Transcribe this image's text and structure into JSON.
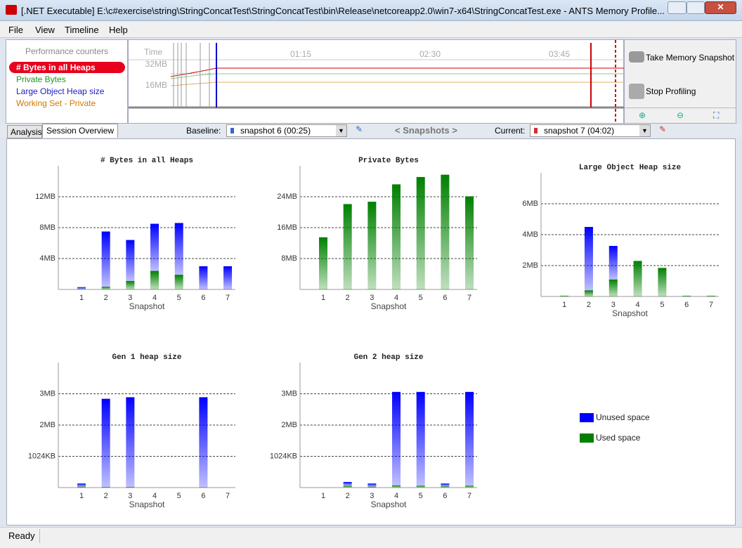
{
  "window": {
    "title": "[.NET Executable] E:\\c#exercise\\string\\StringConcatTest\\StringConcatTest\\bin\\Release\\netcoreapp2.0\\win7-x64\\StringConcatTest.exe - ANTS Memory Profile..."
  },
  "menu": [
    "File",
    "View",
    "Timeline",
    "Help"
  ],
  "counters": {
    "header": "Performance counters",
    "items": [
      "# Bytes in all Heaps",
      "Private Bytes",
      "Large Object Heap size",
      "Working Set - Private"
    ]
  },
  "timeline": {
    "axis_label": "Time",
    "times": [
      "01:15",
      "02:30",
      "03:45"
    ],
    "levels": [
      "32MB",
      "16MB"
    ]
  },
  "actions": {
    "snapshot": "Take Memory Snapshot",
    "stop": "Stop Profiling"
  },
  "tabs": [
    "Analysis",
    "Session Overview"
  ],
  "toolbar": {
    "baseline_label": "Baseline:",
    "baseline": "snapshot 6 (00:25)",
    "nav": "< Snapshots >",
    "current_label": "Current:",
    "current": "snapshot 7 (04:02)"
  },
  "chart_data": [
    {
      "type": "bar",
      "title": "# Bytes in all Heaps",
      "x_label": "Snapshot",
      "categories": [
        "1",
        "2",
        "3",
        "4",
        "5",
        "6",
        "7"
      ],
      "series": [
        {
          "name": "Used space",
          "color": "#008000",
          "values": [
            0.05,
            0.35,
            1.1,
            2.4,
            1.9,
            0,
            0
          ]
        },
        {
          "name": "Unused space",
          "color": "#0000ff",
          "values": [
            0.25,
            7.15,
            5.3,
            6.1,
            6.7,
            3.0,
            3.0
          ]
        }
      ],
      "ylim": [
        0,
        16
      ],
      "yticks": [
        {
          "value": 4,
          "label": "4MB"
        },
        {
          "value": 8,
          "label": "8MB"
        },
        {
          "value": 12,
          "label": "12MB"
        }
      ],
      "grid": true
    },
    {
      "type": "bar",
      "title": "Private Bytes",
      "x_label": "Snapshot",
      "categories": [
        "1",
        "2",
        "3",
        "4",
        "5",
        "6",
        "7"
      ],
      "series": [
        {
          "name": "Used space",
          "color": "#008000",
          "values": [
            13.5,
            22.1,
            22.7,
            27.2,
            29.1,
            29.7,
            24.1
          ]
        }
      ],
      "ylim": [
        0,
        32
      ],
      "yticks": [
        {
          "value": 8,
          "label": "8MB"
        },
        {
          "value": 16,
          "label": "16MB"
        },
        {
          "value": 24,
          "label": "24MB"
        }
      ],
      "grid": true
    },
    {
      "type": "bar",
      "title": "Large Object Heap size",
      "x_label": "Snapshot",
      "categories": [
        "1",
        "2",
        "3",
        "4",
        "5",
        "6",
        "7"
      ],
      "series": [
        {
          "name": "Used space",
          "color": "#008000",
          "values": [
            0.05,
            0.4,
            1.1,
            2.3,
            1.85,
            0.05,
            0.05
          ]
        },
        {
          "name": "Unused space",
          "color": "#0000ff",
          "values": [
            0,
            4.1,
            2.17,
            0,
            0,
            0,
            0
          ]
        }
      ],
      "ylim": [
        0,
        8
      ],
      "yticks": [
        {
          "value": 2,
          "label": "2MB"
        },
        {
          "value": 4,
          "label": "4MB"
        },
        {
          "value": 6,
          "label": "6MB"
        }
      ],
      "grid": true
    },
    {
      "type": "bar",
      "title": "Gen 1 heap size",
      "x_label": "Snapshot",
      "categories": [
        "1",
        "2",
        "3",
        "4",
        "5",
        "6",
        "7"
      ],
      "series": [
        {
          "name": "Used space",
          "color": "#008000",
          "values": [
            0.03,
            0.02,
            0.02,
            0,
            0,
            0.01,
            0
          ]
        },
        {
          "name": "Unused space",
          "color": "#0000ff",
          "values": [
            0.1,
            2.82,
            2.87,
            0,
            0,
            2.88,
            0
          ]
        }
      ],
      "ylim": [
        0,
        4
      ],
      "yticks": [
        {
          "value": 1,
          "label": "1024KB"
        },
        {
          "value": 2,
          "label": "2MB"
        },
        {
          "value": 3,
          "label": "3MB"
        }
      ],
      "grid": true
    },
    {
      "type": "bar",
      "title": "Gen 2 heap size",
      "x_label": "Snapshot",
      "categories": [
        "1",
        "2",
        "3",
        "4",
        "5",
        "6",
        "7"
      ],
      "series": [
        {
          "name": "Used space",
          "color": "#008000",
          "values": [
            0,
            0.06,
            0.03,
            0.07,
            0.06,
            0.04,
            0.06
          ]
        },
        {
          "name": "Unused space",
          "color": "#0000ff",
          "values": [
            0,
            0.12,
            0.1,
            2.99,
            3.0,
            0.09,
            3.0
          ]
        }
      ],
      "ylim": [
        0,
        4
      ],
      "yticks": [
        {
          "value": 1,
          "label": "1024KB"
        },
        {
          "value": 2,
          "label": "2MB"
        },
        {
          "value": 3,
          "label": "3MB"
        }
      ],
      "grid": true
    }
  ],
  "status": "Ready"
}
